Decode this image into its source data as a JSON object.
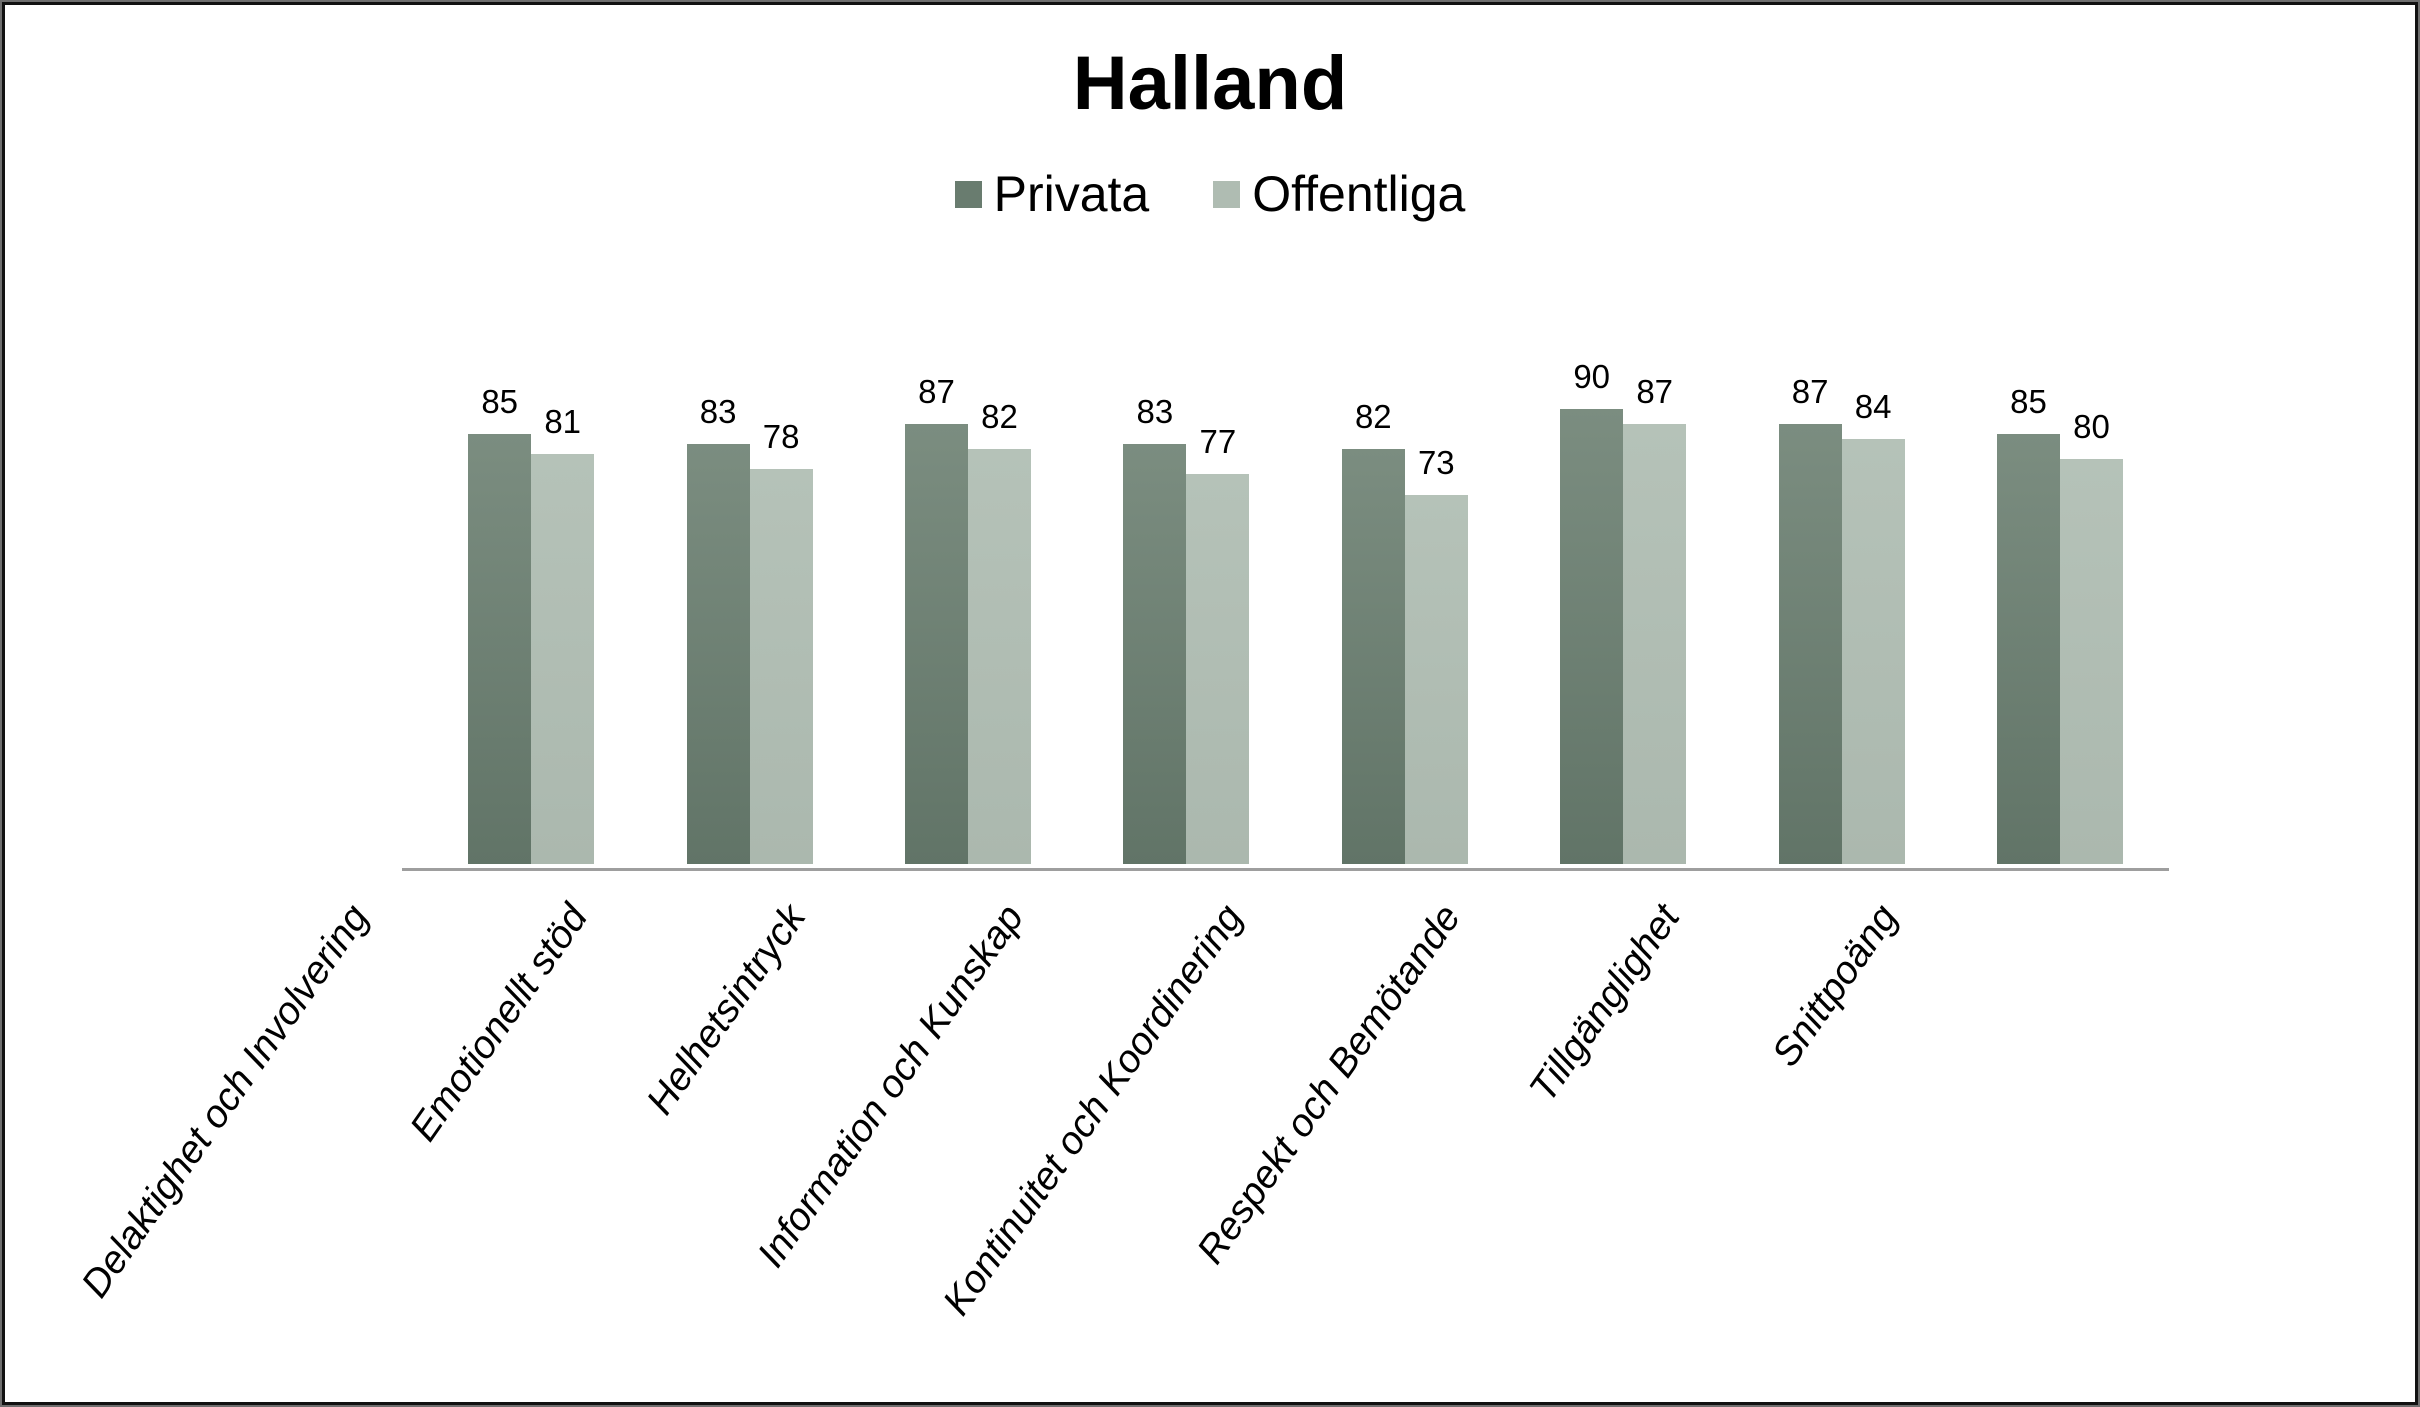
{
  "frame": {
    "background": "#ffffff",
    "border_color": "#161616"
  },
  "chart_data": {
    "type": "bar",
    "title": "Halland",
    "categories": [
      "Delaktighet och Involvering",
      "Emotionellt stöd",
      "Helhetsintryck",
      "Information och Kunskap",
      "Kontinuitet och Koordinering",
      "Respekt och Bemötande",
      "Tillgänglighet",
      "Snittpoäng"
    ],
    "series": [
      {
        "name": "Privata",
        "values": [
          85,
          83,
          87,
          83,
          82,
          90,
          87,
          85
        ],
        "color_top": "#7b8d80",
        "color_bottom": "#617467",
        "legend_color": "#697c6f"
      },
      {
        "name": "Offentliga",
        "values": [
          81,
          78,
          82,
          77,
          73,
          87,
          84,
          80
        ],
        "color_top": "#b5c2b8",
        "color_bottom": "#abb8ae",
        "legend_color": "#afbcb2"
      }
    ],
    "ylim": [
      0,
      100
    ],
    "grid": false,
    "legend_position": "top",
    "data_labels": "outside-end",
    "axis_line_color": "#9e9e9e",
    "xlabel": "",
    "ylabel": ""
  }
}
